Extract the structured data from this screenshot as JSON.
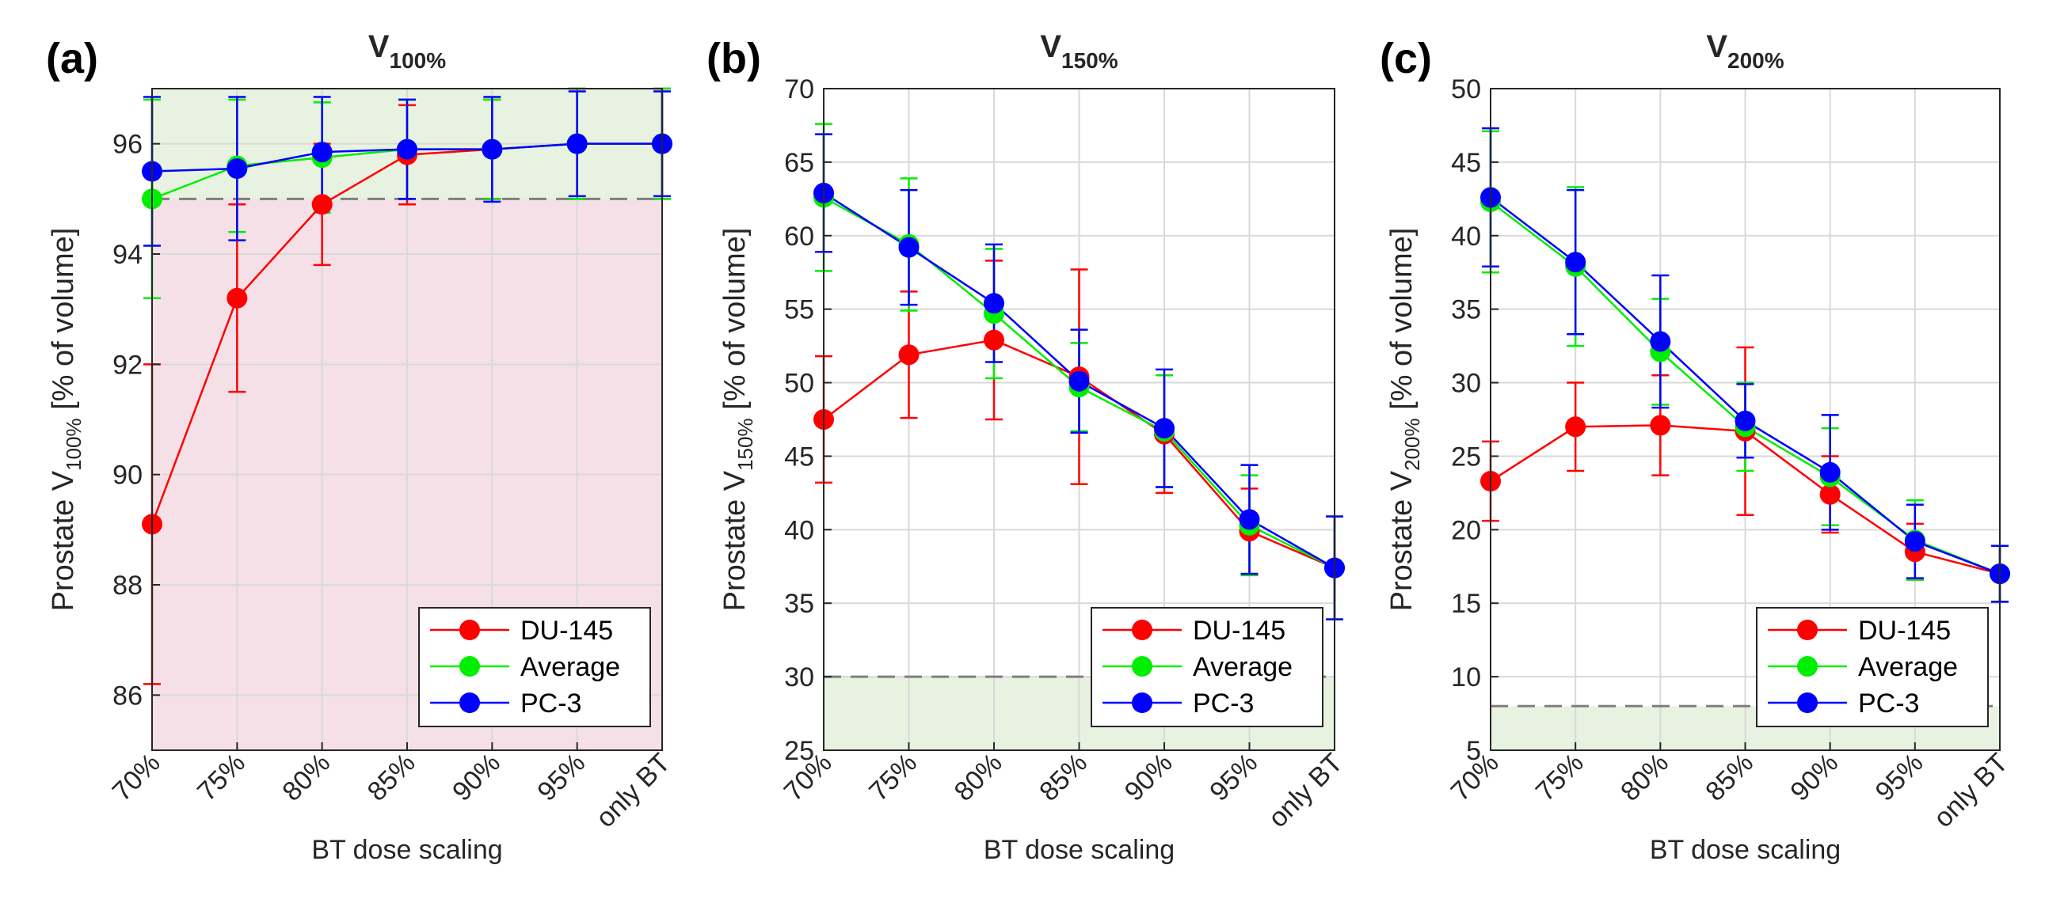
{
  "figure": {
    "x_label": "BT dose scaling",
    "categories": [
      "70%",
      "75%",
      "80%",
      "85%",
      "90%",
      "95%",
      "only BT"
    ],
    "series_colors": {
      "DU-145": "#ff0000",
      "Average": "#00ee00",
      "PC-3": "#0000ff"
    },
    "threshold_color": "#7f7f7f",
    "ok_fill": "#e8f2e0",
    "bad_fill": "#f4e0e6"
  },
  "chart_data": [
    {
      "type": "line",
      "panel_label": "(a)",
      "title_main": "V",
      "title_sub": "100%",
      "ylabel_prefix": "Prostate V",
      "ylabel_sub": "100%",
      "ylabel_suffix": " [% of volume]",
      "xlabel": "BT dose scaling",
      "categories": [
        "70%",
        "75%",
        "80%",
        "85%",
        "90%",
        "95%",
        "only BT"
      ],
      "ylim": [
        85,
        97
      ],
      "yticks": [
        86,
        88,
        90,
        92,
        94,
        96
      ],
      "threshold": 95,
      "good_region": "above",
      "legend": [
        "DU-145",
        "Average",
        "PC-3"
      ],
      "legend_position": "bottom-right",
      "series": [
        {
          "name": "DU-145",
          "values": [
            89.1,
            93.2,
            94.9,
            95.8,
            95.9,
            96.0,
            96.0
          ],
          "err": [
            2.9,
            1.7,
            1.1,
            0.9,
            0.9,
            1.0,
            1.0
          ]
        },
        {
          "name": "Average",
          "values": [
            95.0,
            95.6,
            95.75,
            95.9,
            95.9,
            96.0,
            96.0
          ],
          "err": [
            1.8,
            1.2,
            1.0,
            0.9,
            0.9,
            1.0,
            1.0
          ]
        },
        {
          "name": "PC-3",
          "values": [
            95.5,
            95.55,
            95.85,
            95.9,
            95.9,
            96.0,
            96.0
          ],
          "err": [
            1.35,
            1.3,
            1.0,
            0.9,
            0.95,
            0.95,
            0.95
          ]
        }
      ]
    },
    {
      "type": "line",
      "panel_label": "(b)",
      "title_main": "V",
      "title_sub": "150%",
      "ylabel_prefix": "Prostate V",
      "ylabel_sub": "150%",
      "ylabel_suffix": " [% of volume]",
      "xlabel": "BT dose scaling",
      "categories": [
        "70%",
        "75%",
        "80%",
        "85%",
        "90%",
        "95%",
        "only BT"
      ],
      "ylim": [
        25,
        70
      ],
      "yticks": [
        25,
        30,
        35,
        40,
        45,
        50,
        55,
        60,
        65,
        70
      ],
      "threshold": 30,
      "good_region": "below",
      "legend": [
        "DU-145",
        "Average",
        "PC-3"
      ],
      "legend_position": "bottom-right",
      "series": [
        {
          "name": "DU-145",
          "values": [
            47.5,
            51.9,
            52.9,
            50.4,
            46.5,
            39.9,
            37.4
          ],
          "err": [
            4.3,
            4.3,
            5.4,
            7.3,
            4.0,
            2.9,
            3.5
          ]
        },
        {
          "name": "Average",
          "values": [
            62.6,
            59.4,
            54.7,
            49.7,
            46.7,
            40.3,
            37.4
          ],
          "err": [
            5.0,
            4.5,
            4.4,
            3.0,
            3.8,
            3.4,
            3.5
          ]
        },
        {
          "name": "PC-3",
          "values": [
            62.9,
            59.2,
            55.4,
            50.1,
            46.9,
            40.7,
            37.4
          ],
          "err": [
            4.0,
            3.9,
            4.0,
            3.5,
            4.0,
            3.7,
            3.5
          ]
        }
      ]
    },
    {
      "type": "line",
      "panel_label": "(c)",
      "title_main": "V",
      "title_sub": "200%",
      "ylabel_prefix": "Prostate V",
      "ylabel_sub": "200%",
      "ylabel_suffix": " [% of volume]",
      "xlabel": "BT dose scaling",
      "categories": [
        "70%",
        "75%",
        "80%",
        "85%",
        "90%",
        "95%",
        "only BT"
      ],
      "ylim": [
        5,
        50
      ],
      "yticks": [
        5,
        10,
        15,
        20,
        25,
        30,
        35,
        40,
        45,
        50
      ],
      "threshold": 8,
      "good_region": "below",
      "legend": [
        "DU-145",
        "Average",
        "PC-3"
      ],
      "legend_position": "bottom-right",
      "series": [
        {
          "name": "DU-145",
          "values": [
            23.3,
            27.0,
            27.1,
            26.7,
            22.4,
            18.5,
            17.0
          ],
          "err": [
            2.7,
            3.0,
            3.4,
            5.7,
            2.6,
            1.9,
            1.9
          ]
        },
        {
          "name": "Average",
          "values": [
            42.3,
            37.9,
            32.1,
            27.0,
            23.6,
            19.3,
            17.0
          ],
          "err": [
            4.8,
            5.4,
            3.6,
            3.0,
            3.3,
            2.7,
            1.9
          ]
        },
        {
          "name": "PC-3",
          "values": [
            42.6,
            38.2,
            32.8,
            27.4,
            23.9,
            19.2,
            17.0
          ],
          "err": [
            4.7,
            4.9,
            4.5,
            2.5,
            3.9,
            2.5,
            1.9
          ]
        }
      ]
    }
  ]
}
